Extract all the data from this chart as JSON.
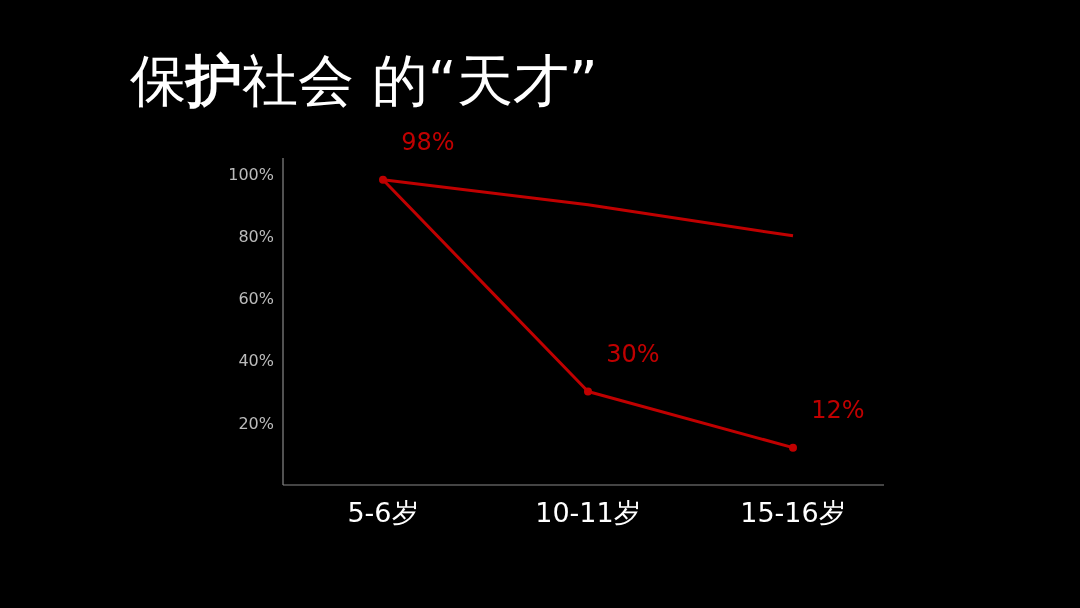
{
  "chart_data": {
    "type": "line",
    "title": "保**护**社会 的“天才”",
    "categories": [
      "5-6岁",
      "10-11岁",
      "15-16岁"
    ],
    "series": [
      {
        "color": "#c00000",
        "values": [
          98,
          90,
          80
        ],
        "marker": "none"
      },
      {
        "color": "#c00000",
        "values": [
          98,
          30,
          12
        ],
        "marker": "circle",
        "value_labels": [
          "98%",
          "30%",
          "12%"
        ]
      }
    ],
    "ylim": [
      0,
      105
    ],
    "yticks": [
      {
        "value": 20,
        "label": "20%"
      },
      {
        "value": 40,
        "label": "40%"
      },
      {
        "value": 60,
        "label": "60%"
      },
      {
        "value": 80,
        "label": "80%"
      },
      {
        "value": 100,
        "label": "100%"
      }
    ]
  }
}
